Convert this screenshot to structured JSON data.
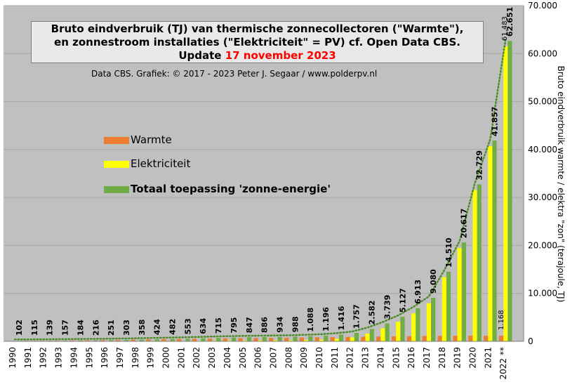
{
  "title": {
    "line1": "Bruto eindverbruik  (TJ) van thermische  zonnecollectoren  (\"Warmte\"),",
    "line2": "en zonnestroom  installaties  (\"Elektriciteit\"  = PV) cf. Open Data CBS.",
    "line3_prefix": "Update ",
    "date": "17 november 2023"
  },
  "credit": "Data CBS. Grafiek:  © 2017 - 2023 Peter J. Segaar / www.polderpv.nl",
  "legend": [
    {
      "label": "Warmte",
      "color": "#ed7d31"
    },
    {
      "label": "Elektriciteit",
      "color": "#ffff00"
    },
    {
      "label": "Totaal toepassing 'zonne-energie'",
      "color": "#70ad47"
    }
  ],
  "colors": {
    "plot_background": "#c0c0c0",
    "warmte": "#ed7d31",
    "elektriciteit": "#ffff00",
    "totaal": "#70ad47",
    "trend": "#4e8a2a"
  },
  "chart_data": {
    "type": "bar",
    "categories": [
      "1990",
      "1991",
      "1992",
      "1993",
      "1994",
      "1995",
      "1996",
      "1997",
      "1998",
      "1999",
      "2000",
      "2001",
      "2002",
      "2003",
      "2004",
      "2005",
      "2006",
      "2007",
      "2008",
      "2009",
      "2010",
      "2011",
      "2012",
      "2013",
      "2014",
      "2015",
      "2016",
      "2017",
      "2018",
      "2019",
      "2020",
      "2021",
      "2022 **"
    ],
    "series": [
      {
        "name": "Warmte",
        "values": [
          102,
          115,
          139,
          157,
          180,
          210,
          245,
          295,
          345,
          405,
          455,
          505,
          540,
          580,
          620,
          660,
          690,
          720,
          760,
          800,
          850,
          880,
          930,
          970,
          1010,
          1040,
          1080,
          1120,
          1140,
          1160,
          1170,
          1170,
          1168
        ]
      },
      {
        "name": "Elektriciteit",
        "values": [
          0,
          0,
          0,
          0,
          4,
          6,
          6,
          8,
          13,
          19,
          27,
          48,
          94,
          135,
          175,
          187,
          196,
          214,
          228,
          288,
          346,
          536,
          827,
          1612,
          2729,
          4087,
          5833,
          7960,
          13370,
          19457,
          31559,
          40687,
          61483
        ]
      },
      {
        "name": "Totaal toepassing 'zonne-energie'",
        "values": [
          102,
          115,
          139,
          157,
          184,
          216,
          251,
          303,
          358,
          424,
          482,
          553,
          634,
          715,
          795,
          847,
          886,
          934,
          988,
          1088,
          1196,
          1416,
          1757,
          2582,
          3739,
          5127,
          6913,
          9080,
          14510,
          20617,
          32729,
          41857,
          62651
        ]
      }
    ],
    "total_labels": [
      "102",
      "115",
      "139",
      "157",
      "184",
      "216",
      "251",
      "303",
      "358",
      "424",
      "482",
      "553",
      "634",
      "715",
      "795",
      "847",
      "886",
      "934",
      "988",
      "1.088",
      "1.196",
      "1.416",
      "1.757",
      "2.582",
      "3.739",
      "5.127",
      "6.913",
      "9.080",
      "14.510",
      "20.617",
      "32.729",
      "41.857",
      "62.651"
    ],
    "extra_labels": {
      "elektriciteit_last": "61.483",
      "warmte_last": "1.168"
    },
    "y_ticks": [
      "0",
      "10.000",
      "20.000",
      "30.000",
      "40.000",
      "50.000",
      "60.000",
      "70.000"
    ],
    "ylim": [
      0,
      70000
    ],
    "ylabel": "Bruto eindverbruik  warmte / elektra \"zon\"  (terajoule, TJ)",
    "axis_position": "right",
    "trendline": "dotted exponential trend on total",
    "grid": true
  }
}
